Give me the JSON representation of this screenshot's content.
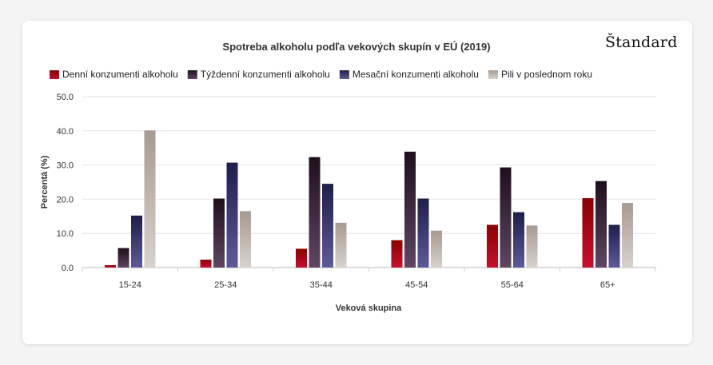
{
  "brand": "Štandard",
  "chart_data": {
    "type": "bar",
    "title": "Spotreba alkoholu podľa vekových skupín v EÚ (2019)",
    "xlabel": "Veková skupina",
    "ylabel": "Percentá (%)",
    "ylim": [
      0,
      50
    ],
    "yticks": [
      "0.0",
      "10.0",
      "20.0",
      "30.0",
      "40.0",
      "50.0"
    ],
    "yticks_values": [
      0,
      10,
      20,
      30,
      40,
      50
    ],
    "grid": true,
    "legend_position": "top-left",
    "categories": [
      "15-24",
      "25-34",
      "35-44",
      "45-54",
      "55-64",
      "65+"
    ],
    "series": [
      {
        "name": "Denní konzumenti alkoholu",
        "values": [
          0.7,
          2.3,
          5.5,
          8.0,
          12.5,
          20.3
        ],
        "color": "#c8102e",
        "color_dark": "#8b0000"
      },
      {
        "name": "Týždenní konzumenti alkoholu",
        "values": [
          5.7,
          20.2,
          32.3,
          33.9,
          29.3,
          25.3
        ],
        "color": "#5e4662",
        "color_dark": "#1f0f1e"
      },
      {
        "name": "Mesační konzumenti alkoholu",
        "values": [
          15.2,
          30.7,
          24.5,
          20.2,
          16.2,
          12.5
        ],
        "color": "#5e5a98",
        "color_dark": "#1e1e4a"
      },
      {
        "name": "Pili v poslednom roku",
        "values": [
          40.1,
          16.5,
          13.1,
          10.8,
          12.3,
          18.9
        ],
        "color": "#d8d2cc",
        "color_dark": "#a89a90"
      }
    ]
  }
}
